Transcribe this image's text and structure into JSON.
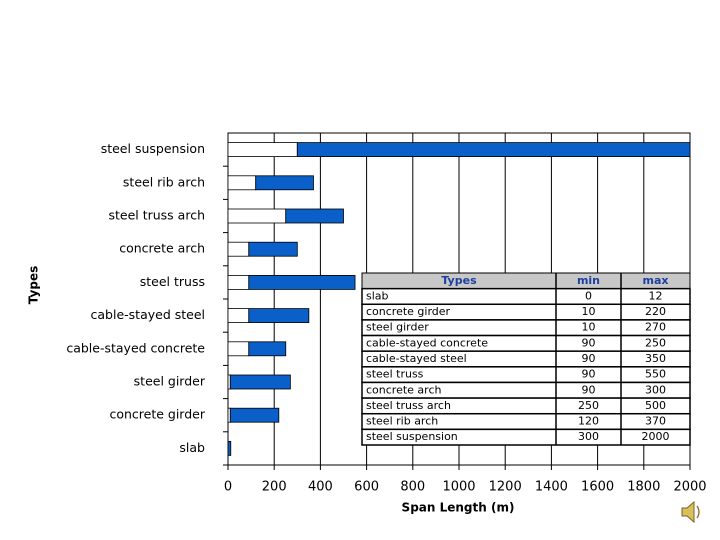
{
  "chart_data": {
    "type": "range-bar",
    "x_label": "Span Length (m)",
    "y_label": "Types",
    "categories": [
      "slab",
      "concrete girder",
      "steel girder",
      "cable-stayed concrete",
      "cable-stayed steel",
      "steel truss",
      "concrete arch",
      "steel truss arch",
      "steel rib arch",
      "steel suspension"
    ],
    "series": [
      {
        "name": "min",
        "color": "#ffffff",
        "values": [
          0,
          10,
          10,
          90,
          90,
          90,
          90,
          250,
          120,
          300
        ]
      },
      {
        "name": "max",
        "color": "#0a5fc8",
        "values": [
          12,
          220,
          270,
          250,
          350,
          550,
          300,
          500,
          370,
          2000
        ]
      }
    ],
    "xlim": [
      0,
      2000
    ],
    "xticks": [
      0,
      200,
      400,
      600,
      800,
      1000,
      1200,
      1400,
      1600,
      1800,
      2000
    ],
    "grid": true
  }
}
